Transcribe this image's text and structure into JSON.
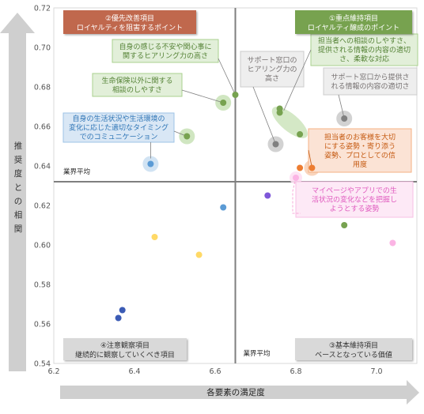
{
  "chart_data": {
    "type": "scatter",
    "xlabel": "各要素の満足度",
    "ylabel": "推奨度との相関",
    "xlim": [
      6.2,
      7.1
    ],
    "ylim": [
      0.54,
      0.72
    ],
    "x_ticks": [
      "6.2",
      "6.4",
      "6.6",
      "6.8",
      "7.0"
    ],
    "y_ticks": [
      "0.54",
      "0.56",
      "0.58",
      "0.60",
      "0.62",
      "0.64",
      "0.66",
      "0.68",
      "0.70",
      "0.72"
    ],
    "avg_x": 6.65,
    "avg_y": 0.632,
    "avg_label_h": "業界平均",
    "avg_label_v": "業界平均",
    "quadrants": [
      {
        "line1": "②優先改善項目",
        "line2": "ロイヤルティを阻害するポイント",
        "color": "#c0674d"
      },
      {
        "line1": "①重点維持項目",
        "line2": "ロイヤルティ醸成のポイント",
        "color": "#77a250"
      },
      {
        "line1": "④注意観察項目",
        "line2": "継続的に観察していくべき項目",
        "color": "#d9d9d9"
      },
      {
        "line1": "③基本維持項目",
        "line2": "ベースとなっている価値",
        "color": "#d9d9d9"
      }
    ],
    "points": [
      {
        "x": 6.65,
        "y": 0.676,
        "color": "#77a250"
      },
      {
        "x": 6.62,
        "y": 0.672,
        "color": "#77a250"
      },
      {
        "x": 6.53,
        "y": 0.655,
        "color": "#77a250"
      },
      {
        "x": 6.76,
        "y": 0.669,
        "color": "#77a250"
      },
      {
        "x": 6.76,
        "y": 0.667,
        "color": "#77a250"
      },
      {
        "x": 6.81,
        "y": 0.656,
        "color": "#77a250"
      },
      {
        "x": 6.75,
        "y": 0.651,
        "color": "#808080"
      },
      {
        "x": 6.92,
        "y": 0.664,
        "color": "#808080"
      },
      {
        "x": 6.44,
        "y": 0.641,
        "color": "#5b9bd5"
      },
      {
        "x": 6.62,
        "y": 0.619,
        "color": "#5b9bd5"
      },
      {
        "x": 6.81,
        "y": 0.639,
        "color": "#ed7d31"
      },
      {
        "x": 6.84,
        "y": 0.639,
        "color": "#ed7d31"
      },
      {
        "x": 6.8,
        "y": 0.634,
        "color": "#fbb4e4"
      },
      {
        "x": 6.73,
        "y": 0.625,
        "color": "#7e57d9"
      },
      {
        "x": 6.92,
        "y": 0.61,
        "color": "#77a250"
      },
      {
        "x": 7.04,
        "y": 0.601,
        "color": "#fbb4e4"
      },
      {
        "x": 6.45,
        "y": 0.604,
        "color": "#ffd966"
      },
      {
        "x": 6.56,
        "y": 0.595,
        "color": "#ffd966"
      },
      {
        "x": 6.37,
        "y": 0.567,
        "color": "#3b5bb5"
      },
      {
        "x": 6.36,
        "y": 0.563,
        "color": "#3b5bb5"
      }
    ],
    "annotations": [
      {
        "lines": [
          "自身の感じる不安や関心事に",
          "関するヒアリング力の高さ"
        ],
        "style": "green"
      },
      {
        "lines": [
          "生命保険以外に関する",
          "相談のしやすさ"
        ],
        "style": "green"
      },
      {
        "lines": [
          "自身の生活状況や生活環境の",
          "変化に応じた適切なタイミング",
          "でのコミュニケーション"
        ],
        "style": "blue"
      },
      {
        "lines": [
          "サポート窓口の",
          "ヒアリング力の",
          "高さ"
        ],
        "style": "gray"
      },
      {
        "lines": [
          "担当者への相談のしやすさ、",
          "提供される情報の内容の適切",
          "さ、柔軟な対応"
        ],
        "style": "green"
      },
      {
        "lines": [
          "サポート窓口から提供さ",
          "れる情報の内容の適切さ"
        ],
        "style": "gray"
      },
      {
        "lines": [
          "担当者のお客様を大切",
          "にする姿勢・寄り添う",
          "姿勢、プロとしての信",
          "用度"
        ],
        "style": "orange"
      },
      {
        "lines": [
          "マイページやアプリでの生",
          "活状況の変化などを把握し",
          "ようとする姿勢"
        ],
        "style": "pink"
      }
    ]
  }
}
